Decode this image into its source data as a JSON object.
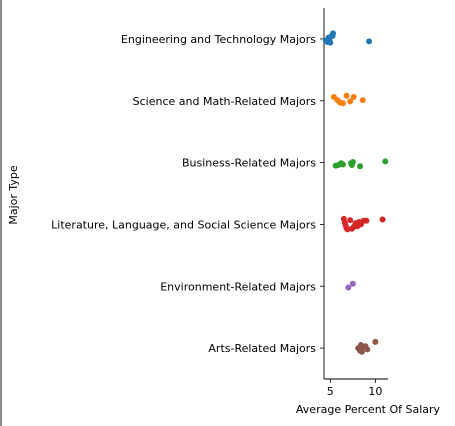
{
  "chart_data": {
    "type": "scatter",
    "subtype": "strip",
    "title": "",
    "xlabel": "Average Percent Of Salary",
    "ylabel": "Major Type",
    "xlim": [
      4.3,
      11.4
    ],
    "xticks": [
      5,
      10
    ],
    "grid": false,
    "legend": "none",
    "categories": [
      "Engineering and Technology Majors",
      "Science and Math-Related Majors",
      "Business-Related Majors",
      "Literature, Language, and Social Science Majors",
      "Environment-Related Majors",
      "Arts-Related Majors"
    ],
    "series": [
      {
        "color": "#1f77b4",
        "points": [
          {
            "x": 4.5,
            "jitter": 0.03
          },
          {
            "x": 4.7,
            "jitter": 0.05
          },
          {
            "x": 4.8,
            "jitter": -0.02
          },
          {
            "x": 4.9,
            "jitter": 0.02
          },
          {
            "x": 5.0,
            "jitter": 0.06
          },
          {
            "x": 5.1,
            "jitter": -0.04
          },
          {
            "x": 5.3,
            "jitter": -0.09
          },
          {
            "x": 5.25,
            "jitter": -0.05
          },
          {
            "x": 9.3,
            "jitter": 0.04
          }
        ]
      },
      {
        "color": "#ff7f0e",
        "points": [
          {
            "x": 5.4,
            "jitter": -0.06
          },
          {
            "x": 5.8,
            "jitter": -0.01
          },
          {
            "x": 6.1,
            "jitter": 0.03
          },
          {
            "x": 6.4,
            "jitter": 0.04
          },
          {
            "x": 6.8,
            "jitter": -0.08
          },
          {
            "x": 7.2,
            "jitter": 0.01
          },
          {
            "x": 7.6,
            "jitter": -0.06
          },
          {
            "x": 8.6,
            "jitter": -0.01
          }
        ]
      },
      {
        "color": "#2ca02c",
        "points": [
          {
            "x": 5.6,
            "jitter": 0.05
          },
          {
            "x": 5.9,
            "jitter": 0.04
          },
          {
            "x": 6.2,
            "jitter": 0.01
          },
          {
            "x": 6.4,
            "jitter": 0.03
          },
          {
            "x": 7.3,
            "jitter": 0.01
          },
          {
            "x": 7.5,
            "jitter": -0.01
          },
          {
            "x": 7.4,
            "jitter": 0.04
          },
          {
            "x": 8.3,
            "jitter": 0.06
          },
          {
            "x": 11.1,
            "jitter": -0.02
          }
        ]
      },
      {
        "color": "#d62728",
        "points": [
          {
            "x": 6.5,
            "jitter": -0.09
          },
          {
            "x": 6.6,
            "jitter": -0.03
          },
          {
            "x": 6.7,
            "jitter": 0.02
          },
          {
            "x": 6.8,
            "jitter": 0.06
          },
          {
            "x": 6.9,
            "jitter": 0.08
          },
          {
            "x": 7.2,
            "jitter": -0.07
          },
          {
            "x": 7.4,
            "jitter": 0.07
          },
          {
            "x": 7.6,
            "jitter": 0.04
          },
          {
            "x": 7.8,
            "jitter": -0.02
          },
          {
            "x": 8.0,
            "jitter": 0.03
          },
          {
            "x": 8.2,
            "jitter": -0.04
          },
          {
            "x": 8.4,
            "jitter": 0.0
          },
          {
            "x": 8.7,
            "jitter": -0.06
          },
          {
            "x": 9.0,
            "jitter": -0.06
          },
          {
            "x": 10.8,
            "jitter": -0.08
          }
        ]
      },
      {
        "color": "#9467bd",
        "points": [
          {
            "x": 7.0,
            "jitter": 0.02
          },
          {
            "x": 7.5,
            "jitter": -0.04
          }
        ]
      },
      {
        "color": "#8c564b",
        "points": [
          {
            "x": 8.1,
            "jitter": 0.0
          },
          {
            "x": 8.3,
            "jitter": 0.04
          },
          {
            "x": 8.4,
            "jitter": -0.05
          },
          {
            "x": 8.5,
            "jitter": 0.06
          },
          {
            "x": 8.7,
            "jitter": -0.02
          },
          {
            "x": 8.9,
            "jitter": -0.03
          },
          {
            "x": 9.1,
            "jitter": 0.02
          },
          {
            "x": 10.0,
            "jitter": -0.1
          }
        ]
      }
    ]
  }
}
